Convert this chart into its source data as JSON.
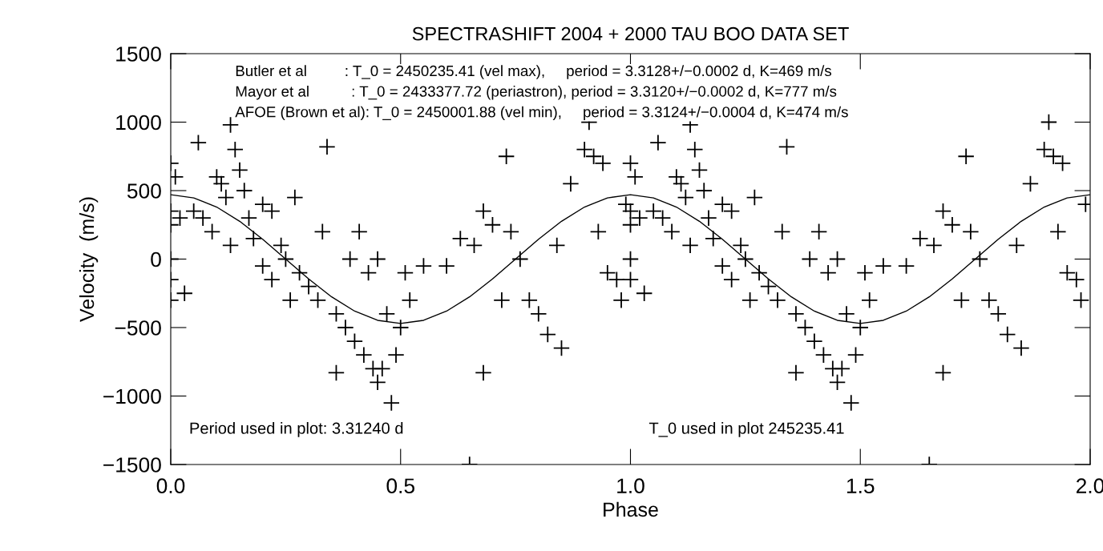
{
  "chart_data": {
    "type": "scatter",
    "title": "SPECTRASHIFT 2004 + 2000 TAU BOO DATA SET",
    "xlabel": "Phase",
    "ylabel": "Velocity  (m/s)",
    "xlim": [
      0.0,
      2.0
    ],
    "xticks": [
      {
        "value": 0,
        "label": "0.0"
      },
      0.5,
      {
        "value": 1,
        "label": "1.0"
      },
      1.5,
      {
        "value": 2,
        "label": "2.0"
      }
    ],
    "ylim": [
      -1500,
      1500
    ],
    "yticks": [
      -1500,
      -1000,
      -500,
      0,
      500,
      1000,
      1500
    ],
    "marker": "cross",
    "grid": false,
    "legend": false,
    "annotations": [
      "Butler et al         : T_0 = 2450235.41 (vel max),     period = 3.3128+/−0.0002 d, K=469 m/s",
      "Mayor et al          : T_0 = 2433377.72 (periastron), period = 3.3120+/−0.0002 d, K=777 m/s",
      "AFOE (Brown et al): T_0 = 2450001.88 (vel min),     period = 3.3124+/−0.0004 d, K=474 m/s",
      "Period used in plot: 3.31240 d",
      "T_0 used in plot 245235.41"
    ],
    "series": [
      {
        "type": "scatter",
        "color": "#000000",
        "x": [
          0.0,
          0.01,
          0.0,
          0.0,
          0.0,
          0.0,
          0.0,
          0.02,
          0.03,
          0.05,
          0.07,
          0.06,
          0.09,
          0.1,
          0.11,
          0.12,
          0.13,
          0.14,
          0.15,
          0.13,
          0.16,
          0.17,
          0.18,
          0.2,
          0.2,
          0.22,
          0.22,
          0.24,
          0.25,
          0.26,
          0.27,
          0.28,
          0.3,
          0.32,
          0.33,
          0.34,
          0.36,
          0.38,
          0.4,
          0.42,
          0.44,
          0.45,
          0.46,
          0.48,
          0.49,
          0.47,
          0.5,
          0.52,
          0.51,
          0.43,
          0.41,
          0.45,
          0.36,
          0.39,
          0.55,
          0.6,
          0.65,
          0.68,
          0.63,
          0.66,
          0.68,
          0.7,
          0.72,
          0.73,
          0.74,
          0.76,
          0.78,
          0.8,
          0.82,
          0.84,
          0.85,
          0.87,
          0.9,
          0.91,
          0.92,
          0.94,
          0.93,
          0.95,
          0.97,
          0.99,
          0.98,
          1.0,
          1.01,
          1.0,
          1.0,
          1.0,
          1.0,
          1.02,
          1.03,
          1.05,
          1.07,
          1.06,
          1.09,
          1.1,
          1.11,
          1.12,
          1.13,
          1.14,
          1.15,
          1.13,
          1.16,
          1.17,
          1.18,
          1.2,
          1.2,
          1.22,
          1.22,
          1.24,
          1.25,
          1.26,
          1.27,
          1.28,
          1.3,
          1.32,
          1.33,
          1.34,
          1.36,
          1.38,
          1.4,
          1.42,
          1.44,
          1.45,
          1.46,
          1.48,
          1.49,
          1.47,
          1.5,
          1.52,
          1.51,
          1.43,
          1.41,
          1.45,
          1.36,
          1.39,
          1.55,
          1.6,
          1.65,
          1.68,
          1.63,
          1.66,
          1.68,
          1.7,
          1.72,
          1.73,
          1.74,
          1.76,
          1.78,
          1.8,
          1.82,
          1.84,
          1.85,
          1.87,
          1.9,
          1.91,
          1.92,
          1.94,
          1.93,
          1.95,
          1.97,
          1.99,
          1.98
        ],
        "values": [
          700,
          600,
          350,
          250,
          0,
          -150,
          -300,
          300,
          -250,
          350,
          300,
          850,
          200,
          600,
          550,
          450,
          980,
          800,
          650,
          100,
          500,
          300,
          150,
          -50,
          400,
          350,
          -150,
          100,
          0,
          -300,
          450,
          -100,
          -200,
          -300,
          200,
          820,
          -400,
          -500,
          -600,
          -700,
          -800,
          -900,
          -800,
          -1050,
          -700,
          -400,
          -500,
          -300,
          -100,
          -100,
          200,
          0,
          -830,
          0,
          -50,
          -50,
          -1500,
          -830,
          150,
          100,
          350,
          250,
          -300,
          750,
          200,
          0,
          -300,
          -400,
          -550,
          100,
          -650,
          550,
          800,
          1000,
          750,
          700,
          200,
          -100,
          -150,
          400,
          -300,
          700,
          600,
          350,
          250,
          0,
          -150,
          300,
          -250,
          350,
          300,
          850,
          200,
          600,
          550,
          450,
          980,
          800,
          650,
          100,
          500,
          300,
          150,
          -50,
          400,
          350,
          -150,
          100,
          0,
          -300,
          450,
          -100,
          -200,
          -300,
          200,
          820,
          -400,
          -500,
          -600,
          -700,
          -800,
          -900,
          -800,
          -1050,
          -700,
          -400,
          -500,
          -300,
          -100,
          -100,
          200,
          0,
          -830,
          0,
          -50,
          -50,
          -1500,
          -830,
          150,
          100,
          350,
          250,
          -300,
          750,
          200,
          0,
          -300,
          -400,
          -550,
          100,
          -650,
          550,
          800,
          1000,
          750,
          700,
          200,
          -100,
          -150,
          400,
          -300
        ]
      },
      {
        "type": "line",
        "color": "#000000",
        "marker": "none",
        "x": [
          0.0,
          0.05,
          0.1,
          0.15,
          0.2,
          0.25,
          0.3,
          0.35,
          0.4,
          0.45,
          0.5,
          0.55,
          0.6,
          0.65,
          0.7,
          0.75,
          0.8,
          0.85,
          0.9,
          0.95,
          1.0,
          1.05,
          1.1,
          1.15,
          1.2,
          1.25,
          1.3,
          1.35,
          1.4,
          1.45,
          1.5,
          1.55,
          1.6,
          1.65,
          1.7,
          1.75,
          1.8,
          1.85,
          1.9,
          1.95,
          2.0
        ],
        "values": [
          470,
          447,
          380,
          276,
          145,
          0,
          -145,
          -276,
          -380,
          -447,
          -470,
          -447,
          -380,
          -276,
          -145,
          0,
          145,
          276,
          380,
          447,
          470,
          447,
          380,
          276,
          145,
          0,
          -145,
          -276,
          -380,
          -447,
          -470,
          -447,
          -380,
          -276,
          -145,
          0,
          145,
          276,
          380,
          447,
          470
        ]
      }
    ]
  }
}
